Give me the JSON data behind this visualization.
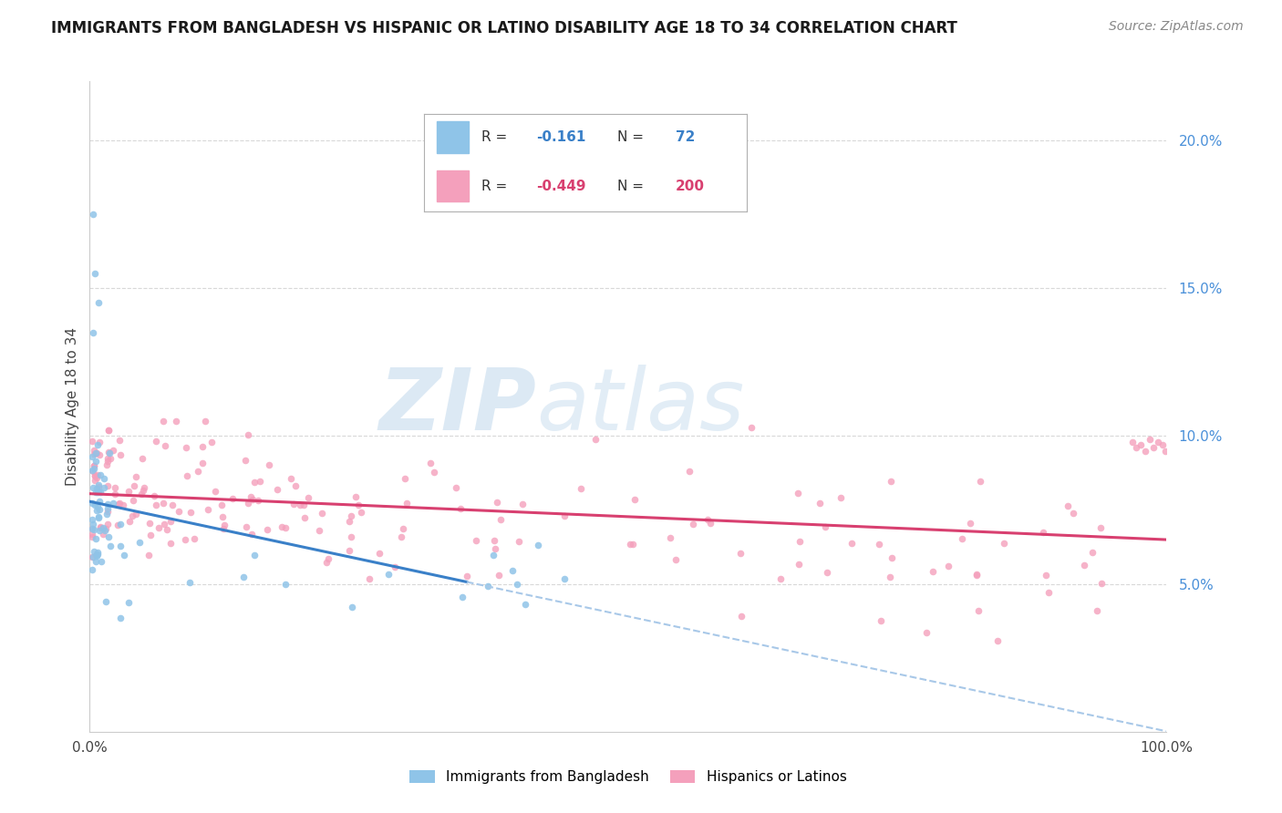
{
  "title": "IMMIGRANTS FROM BANGLADESH VS HISPANIC OR LATINO DISABILITY AGE 18 TO 34 CORRELATION CHART",
  "source": "Source: ZipAtlas.com",
  "ylabel": "Disability Age 18 to 34",
  "legend_blue_label": "Immigrants from Bangladesh",
  "legend_pink_label": "Hispanics or Latinos",
  "R_blue": -0.161,
  "N_blue": 72,
  "R_pink": -0.449,
  "N_pink": 200,
  "blue_color": "#8fc4e8",
  "pink_color": "#f4a0bc",
  "blue_line_color": "#3a80c8",
  "pink_line_color": "#d84070",
  "dashed_line_color": "#a8c8e8",
  "watermark_zip_color": "#c0d8ec",
  "watermark_atlas_color": "#c0d8ec",
  "background_color": "#ffffff",
  "ytick_vals": [
    0.05,
    0.1,
    0.15,
    0.2
  ],
  "xlim": [
    0.0,
    1.0
  ],
  "ylim": [
    0.0,
    0.22
  ]
}
